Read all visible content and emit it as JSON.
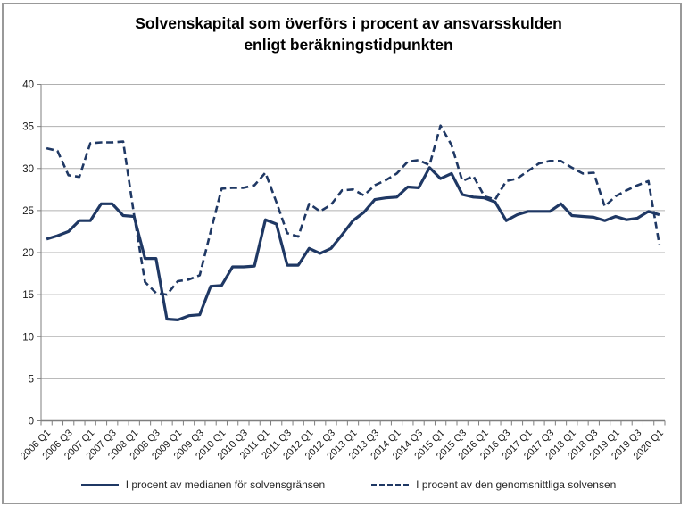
{
  "title": {
    "line1": "Solvenskapital som överförs i procent av ansvarsskulden",
    "line2": "enligt beräkningstidpunkten"
  },
  "chart_data": {
    "type": "line",
    "title": "Solvenskapital som överförs i procent av ansvarsskulden enligt beräkningstidpunkten",
    "xlabel": "",
    "ylabel": "",
    "ylim": [
      0,
      40
    ],
    "ytick_step": 5,
    "y_tick_labels": [
      "0",
      "5",
      "10",
      "15",
      "20",
      "25",
      "30",
      "35",
      "40"
    ],
    "grid": true,
    "legend_position": "bottom",
    "line_color": "#1f3864",
    "gridline_color": "#b0b0b0",
    "axis_color": "#7f7f7f",
    "x_tick_labels": [
      "2006 Q1",
      "2006 Q3",
      "2007 Q1",
      "2007 Q3",
      "2008 Q1",
      "2008 Q3",
      "2009 Q1",
      "2009 Q3",
      "2010 Q1",
      "2010 Q3",
      "2011 Q1",
      "2011 Q3",
      "2012 Q1",
      "2012 Q3",
      "2013 Q1",
      "2013 Q3",
      "2014 Q1",
      "2014 Q3",
      "2015 Q1",
      "2015 Q3",
      "2016 Q1",
      "2016 Q3",
      "2017 Q1",
      "2017 Q3",
      "2018 Q1",
      "2018 Q3",
      "2019 Q1",
      "2019 Q3",
      "2020 Q1"
    ],
    "label_every_n_points": 2,
    "series": [
      {
        "name": "I procent av medianen för solvensgränsen",
        "style": "solid",
        "values": [
          21.6,
          22.0,
          22.5,
          23.8,
          23.8,
          25.8,
          25.8,
          24.4,
          24.3,
          19.3,
          19.3,
          12.1,
          12.0,
          12.5,
          12.6,
          16.0,
          16.1,
          18.3,
          18.3,
          18.4,
          23.9,
          23.4,
          18.5,
          18.5,
          20.5,
          19.9,
          20.5,
          22.1,
          23.8,
          24.8,
          26.3,
          26.5,
          26.6,
          27.8,
          27.7,
          30.1,
          28.8,
          29.4,
          26.9,
          26.6,
          26.5,
          26.0,
          23.8,
          24.5,
          24.9,
          24.9,
          24.9,
          25.8,
          24.4,
          24.3,
          24.2,
          23.8,
          24.3,
          23.9,
          24.1,
          24.9,
          24.5
        ]
      },
      {
        "name": "I procent av den genomsnittliga solvensen",
        "style": "dashed",
        "values": [
          32.4,
          32.1,
          29.2,
          29.0,
          33.0,
          33.1,
          33.1,
          33.2,
          24.5,
          16.5,
          15.2,
          15.0,
          16.6,
          16.8,
          17.3,
          22.5,
          27.6,
          27.7,
          27.7,
          28.0,
          29.5,
          26.0,
          22.3,
          21.9,
          25.8,
          24.9,
          25.7,
          27.4,
          27.5,
          26.8,
          28.0,
          28.6,
          29.4,
          30.8,
          31.0,
          30.4,
          35.1,
          32.8,
          28.5,
          29.1,
          26.7,
          26.3,
          28.5,
          28.8,
          29.7,
          30.6,
          30.9,
          30.9,
          30.1,
          29.4,
          29.5,
          25.5,
          26.7,
          27.4,
          28.0,
          28.5,
          20.9
        ]
      }
    ]
  },
  "legend": {
    "item1": "I procent av medianen för solvensgränsen",
    "item2": "I procent av den genomsnittliga solvensen"
  }
}
